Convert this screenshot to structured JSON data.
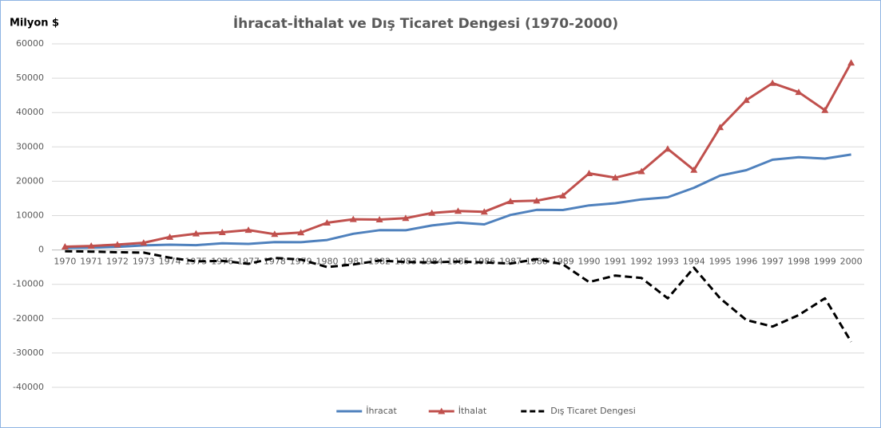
{
  "chart_data": {
    "type": "line",
    "title": "İhracat-İthalat ve Dış Ticaret Dengesi (1970-2000)",
    "y_label": "Milyon $",
    "categories": [
      "1970",
      "1971",
      "1972",
      "1973",
      "1974",
      "1975",
      "1976",
      "1977",
      "1978",
      "1979",
      "1980",
      "1981",
      "1982",
      "1983",
      "1984",
      "1985",
      "1986",
      "1987",
      "1988",
      "1989",
      "1990",
      "1991",
      "1992",
      "1993",
      "1994",
      "1995",
      "1996",
      "1997",
      "1998",
      "1999",
      "2000"
    ],
    "series": [
      {
        "name": "İhracat",
        "color": "#4f81bd",
        "marker": "none",
        "dash": false,
        "values": [
          588,
          677,
          885,
          1317,
          1532,
          1401,
          1960,
          1753,
          2288,
          2261,
          2910,
          4703,
          5746,
          5728,
          7134,
          7958,
          7457,
          10190,
          11662,
          11625,
          12959,
          13593,
          14715,
          15345,
          18106,
          21637,
          23224,
          26261,
          26974,
          26587,
          27775
        ]
      },
      {
        "name": "İthalat",
        "color": "#c0504d",
        "marker": "triangle",
        "dash": false,
        "values": [
          948,
          1171,
          1563,
          2086,
          3778,
          4739,
          5129,
          5796,
          4599,
          5069,
          7909,
          8933,
          8843,
          9235,
          10757,
          11343,
          11105,
          14158,
          14335,
          15792,
          22302,
          21047,
          22871,
          29428,
          23270,
          35709,
          43627,
          48559,
          45921,
          40671,
          54503
        ]
      },
      {
        "name": "Dış Ticaret Dengesi",
        "color": "#000000",
        "marker": "none",
        "dash": true,
        "values": [
          -360,
          -494,
          -678,
          -769,
          -2246,
          -3338,
          -3169,
          -4043,
          -2311,
          -2808,
          -4999,
          -4230,
          -3097,
          -3507,
          -3623,
          -3385,
          -3648,
          -3968,
          -2673,
          -4167,
          -9343,
          -7454,
          -8156,
          -14083,
          -5164,
          -14072,
          -20403,
          -22298,
          -18947,
          -14084,
          -26728
        ]
      }
    ],
    "ylim": [
      -40000,
      60000
    ],
    "yticks": [
      -40000,
      -30000,
      -20000,
      -10000,
      0,
      10000,
      20000,
      30000,
      40000,
      50000,
      60000
    ],
    "grid": true,
    "legend": "bottom"
  }
}
